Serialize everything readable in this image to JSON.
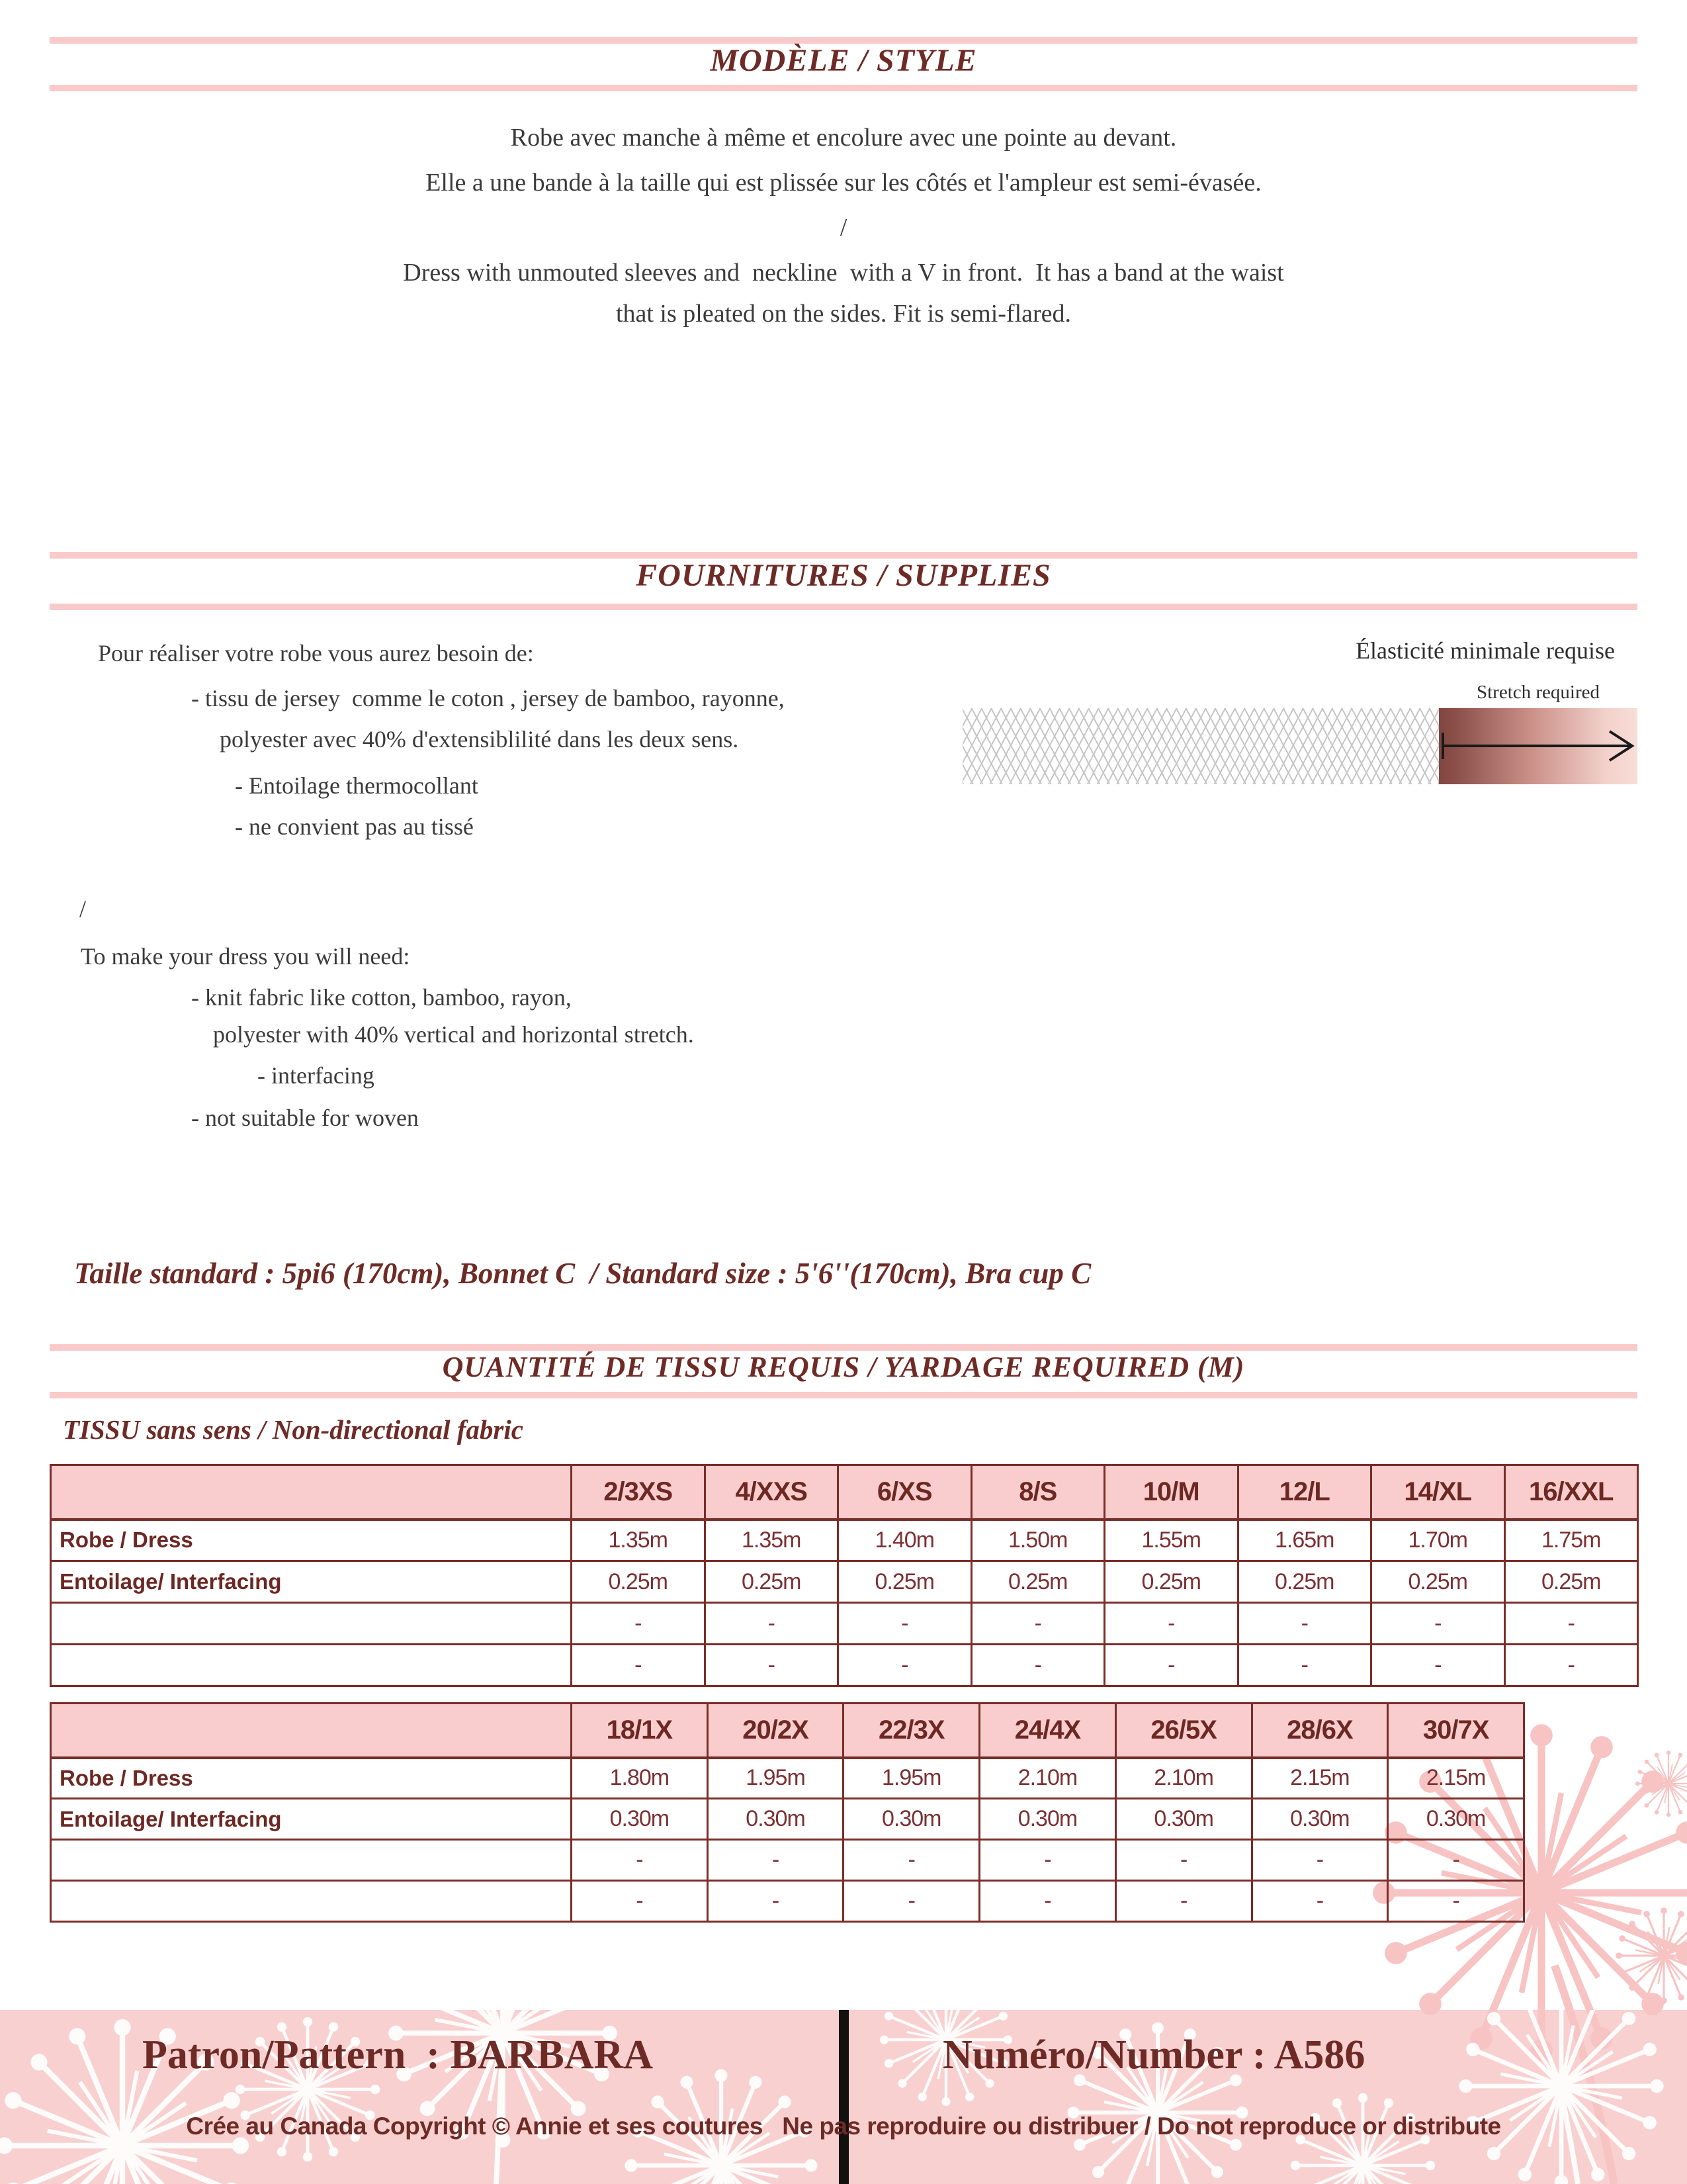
{
  "colors": {
    "maroon": "#6e2b26",
    "table_border_maroon": "#7b2d28",
    "pink_rule": "#f9caca",
    "table_header_pink": "#f9cdcd",
    "footer_pink": "#f8d0d0",
    "body_text": "#3b3b3b",
    "mesh_gray": "#c6c6c6",
    "gradient_dark": "#8a4f48",
    "gradient_light": "#f8ddd7"
  },
  "style_section": {
    "title": "MODÈLE / STYLE",
    "fr_lines": [
      "Robe avec manche à même et encolure avec une pointe au devant.",
      "Elle a une bande à la taille qui est plissée sur les côtés et l'ampleur est semi-évasée."
    ],
    "separator": "/",
    "en_lines": [
      "Dress with unmouted sleeves and  neckline  with a V in front.  It has a band at the waist",
      "that is pleated on the sides. Fit is semi-flared."
    ]
  },
  "supplies_section": {
    "title": "FOURNITURES / SUPPLIES",
    "fr_intro": "Pour réaliser votre robe vous aurez besoin de:",
    "fr_items": [
      "- tissu de jersey  comme le coton , jersey de bamboo, rayonne,",
      "polyester avec 40% d'extensiblilité dans les deux sens.",
      "- Entoilage thermocollant",
      "- ne convient pas au tissé"
    ],
    "separator": "/",
    "en_intro": "To make your dress you will need:",
    "en_items": [
      "- knit fabric like cotton, bamboo, rayon,",
      "polyester with 40% vertical and horizontal stretch.",
      "- interfacing",
      "- not suitable for woven"
    ],
    "stretch_gauge": {
      "label_fr": "Élasticité minimale requise",
      "label_en": "Stretch required"
    }
  },
  "size_line": "Taille standard : 5pi6 (170cm), Bonnet C  / Standard size : 5'6''(170cm), Bra cup C",
  "yardage_section": {
    "title": "QUANTITÉ DE TISSU REQUIS / YARDAGE REQUIRED (M)",
    "subtitle": "TISSU sans sens / Non-directional fabric",
    "table1": {
      "sizes": [
        "2/3XS",
        "4/XXS",
        "6/XS",
        "8/S",
        "10/M",
        "12/L",
        "14/XL",
        "16/XXL"
      ],
      "rows": [
        {
          "label": "Robe / Dress",
          "values": [
            "1.35m",
            "1.35m",
            "1.40m",
            "1.50m",
            "1.55m",
            "1.65m",
            "1.70m",
            "1.75m"
          ]
        },
        {
          "label": "Entoilage/ Interfacing",
          "values": [
            "0.25m",
            "0.25m",
            "0.25m",
            "0.25m",
            "0.25m",
            "0.25m",
            "0.25m",
            "0.25m"
          ]
        },
        {
          "label": "",
          "values": [
            "-",
            "-",
            "-",
            "-",
            "-",
            "-",
            "-",
            "-"
          ]
        },
        {
          "label": "",
          "values": [
            "-",
            "-",
            "-",
            "-",
            "-",
            "-",
            "-",
            "-"
          ]
        }
      ]
    },
    "table2": {
      "sizes": [
        "18/1X",
        "20/2X",
        "22/3X",
        "24/4X",
        "26/5X",
        "28/6X",
        "30/7X"
      ],
      "rows": [
        {
          "label": "Robe / Dress",
          "values": [
            "1.80m",
            "1.95m",
            "1.95m",
            "2.10m",
            "2.10m",
            "2.15m",
            "2.15m"
          ]
        },
        {
          "label": "Entoilage/ Interfacing",
          "values": [
            "0.30m",
            "0.30m",
            "0.30m",
            "0.30m",
            "0.30m",
            "0.30m",
            "0.30m"
          ]
        },
        {
          "label": "",
          "values": [
            "-",
            "-",
            "-",
            "-",
            "-",
            "-",
            "-"
          ]
        },
        {
          "label": "",
          "values": [
            "-",
            "-",
            "-",
            "-",
            "-",
            "-",
            "-"
          ]
        }
      ]
    }
  },
  "footer": {
    "pattern": "Patron/Pattern  : BARBARA",
    "number": "Numéro/Number : A586",
    "copyright": "Crée au Canada Copyright © Annie et ses coutures   Ne pas reproduire ou distribuer / Do not reproduce or distribute"
  }
}
